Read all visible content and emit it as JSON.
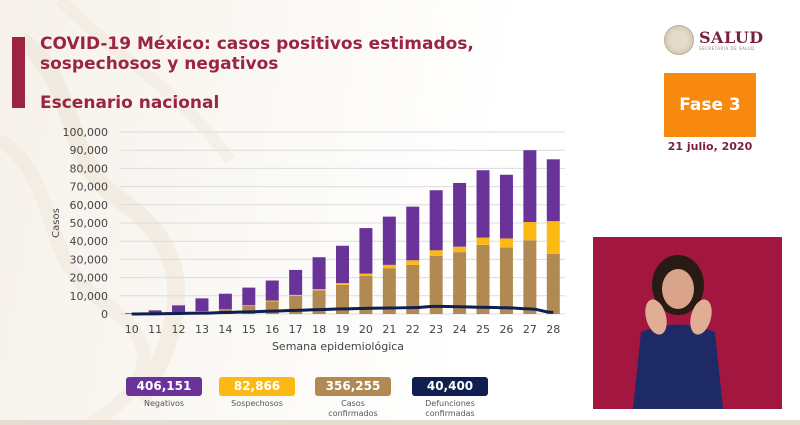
{
  "header": {
    "title": "COVID-19 México: casos positivos estimados, sospechosos y negativos",
    "subtitle": "Escenario nacional",
    "logo_text": "SALUD",
    "logo_subtext": "SECRETARÍA DE SALUD",
    "phase_label": "Fase 3",
    "date": "21 julio, 2020"
  },
  "colors": {
    "title": "#9b2444",
    "negativos": "#6a3399",
    "sospechosos": "#fdb913",
    "confirmados": "#b08a52",
    "defunciones": "#0f1f4f",
    "phase": "#f7890f"
  },
  "stats": [
    {
      "value": "406,151",
      "label": "Negativos",
      "label2": "",
      "color": "#6a3399"
    },
    {
      "value": "82,866",
      "label": "Sospechosos",
      "label2": "",
      "color": "#fdb913"
    },
    {
      "value": "356,255",
      "label": "Casos",
      "label2": "confirmados",
      "color": "#b08a52"
    },
    {
      "value": "40,400",
      "label": "Defunciones",
      "label2": "confirmadas",
      "color": "#0f1f4f"
    }
  ],
  "chart_data": {
    "type": "bar",
    "stacked": true,
    "title": "",
    "xlabel": "Semana epidemiológica",
    "ylabel": "Casos",
    "ylim": [
      0,
      100000
    ],
    "yticks": [
      0,
      10000,
      20000,
      30000,
      40000,
      50000,
      60000,
      70000,
      80000,
      90000,
      100000
    ],
    "ytick_labels": [
      "0",
      "10,000",
      "20,000",
      "30,000",
      "40,000",
      "50,000",
      "60,000",
      "70,000",
      "80,000",
      "90,000",
      "100,000"
    ],
    "grid": true,
    "categories": [
      "10",
      "11",
      "12",
      "13",
      "14",
      "15",
      "16",
      "17",
      "18",
      "19",
      "20",
      "21",
      "22",
      "23",
      "24",
      "25",
      "26",
      "27",
      "28"
    ],
    "series": [
      {
        "name": "Casos confirmados",
        "color": "#b08a52",
        "values": [
          100,
          200,
          700,
          1500,
          2500,
          4500,
          7000,
          10000,
          13000,
          16000,
          21000,
          25000,
          27000,
          32000,
          34000,
          38000,
          36500,
          40500,
          33000
        ]
      },
      {
        "name": "Sospechosos",
        "color": "#fdb913",
        "values": [
          0,
          0,
          50,
          100,
          150,
          300,
          400,
          500,
          700,
          1000,
          1200,
          2000,
          2500,
          3000,
          3000,
          4000,
          5000,
          10000,
          18000
        ]
      },
      {
        "name": "Negativos",
        "color": "#6a3399",
        "values": [
          400,
          1800,
          4000,
          7000,
          8500,
          9700,
          11000,
          13700,
          17500,
          20500,
          25000,
          26500,
          29500,
          33000,
          35000,
          37000,
          35000,
          39500,
          34000
        ]
      }
    ],
    "line": {
      "name": "Defunciones",
      "color": "#0f1f4f",
      "values": [
        0,
        100,
        300,
        500,
        800,
        1200,
        1600,
        2000,
        2400,
        2800,
        3100,
        3300,
        3500,
        4200,
        4000,
        3700,
        3400,
        2800,
        900
      ]
    }
  }
}
